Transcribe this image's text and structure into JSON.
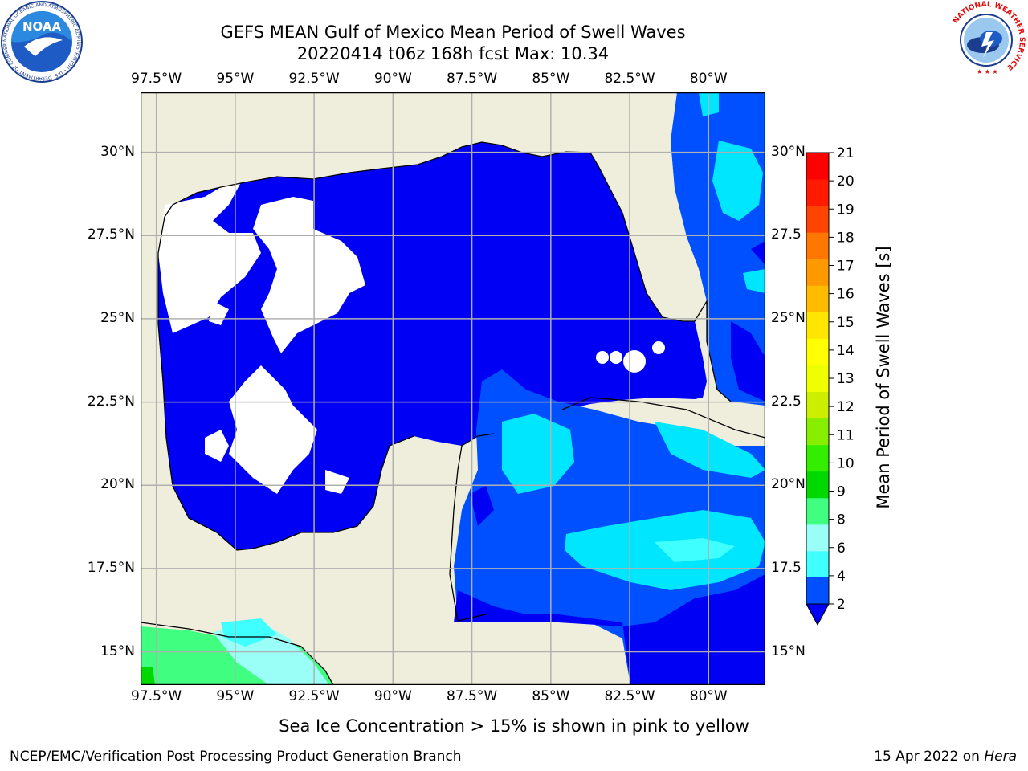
{
  "title": {
    "line1": "GEFS MEAN Gulf of Mexico Mean Period of Swell Waves",
    "line2": "20220414 t06z 168h fcst   Max: 10.34"
  },
  "map": {
    "lon_labels": [
      "97.5°W",
      "95°W",
      "92.5°W",
      "90°W",
      "87.5°W",
      "85°W",
      "82.5°W",
      "80°W"
    ],
    "lat_labels_left": [
      "30°N",
      "27.5°N",
      "25°N",
      "22.5°N",
      "20°N",
      "17.5°N",
      "15°N"
    ],
    "lat_labels_right": [
      "30°N",
      "27.5",
      "25°N",
      "22.5",
      "20°N",
      "17.5",
      "15°N"
    ],
    "extent": {
      "lon_min": -98.0,
      "lon_max": -78.2,
      "lat_min": 14.0,
      "lat_max": 31.8
    },
    "colors": {
      "land": "#efeedd",
      "ocean_calm": "#0000f5",
      "ice_free_no_data": "#ffffff",
      "grid": "#b0b0b0"
    }
  },
  "colorbar": {
    "label": "Mean Period of Swell Waves [s]",
    "ticks": [
      "21",
      "20",
      "19",
      "18",
      "17",
      "16",
      "15",
      "14",
      "13",
      "12",
      "11",
      "10",
      "9",
      "8",
      "6",
      "4",
      "2"
    ],
    "colors": [
      "#0050ff",
      "#00e6ff",
      "#40ffff",
      "#99fff7",
      "#40ff80",
      "#00d900",
      "#33ee00",
      "#88ee00",
      "#ccee00",
      "#eeff00",
      "#ffff00",
      "#ffe600",
      "#ffbb00",
      "#ff9900",
      "#ff7700",
      "#ff4400",
      "#ff1a00",
      "#ff0000"
    ],
    "extend_min_color": "#0000f5"
  },
  "caption": "Sea Ice Concentration > 15% is shown in pink to yellow",
  "footer": {
    "left": "NCEP/EMC/Verification Post Processing Product Generation Branch",
    "date": "15 Apr 2022 on ",
    "machine": "Hera"
  },
  "logos": {
    "noaa_text": "NOAA",
    "noaa_ring": "NATIONAL OCEANIC AND ATMOSPHERIC ADMINISTRATION • U.S. DEPARTMENT OF COMMERCE",
    "nws_ring": "NATIONAL WEATHER SERVICE"
  }
}
